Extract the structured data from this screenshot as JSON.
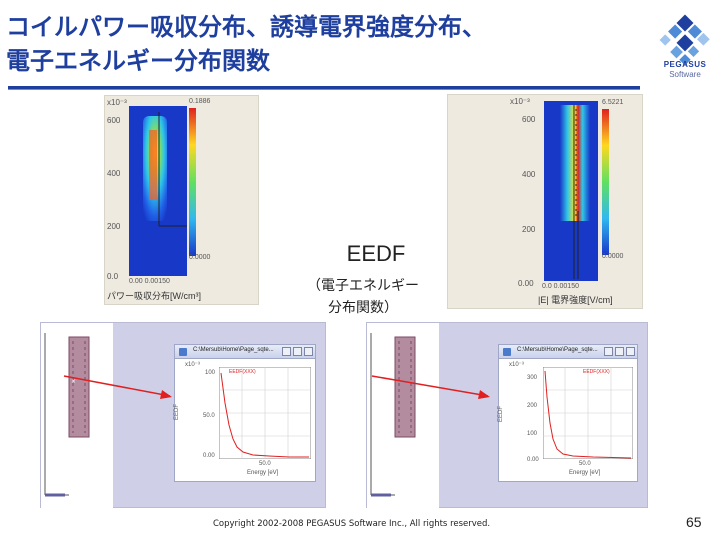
{
  "slide": {
    "title_line1": "コイルパワー吸収分布、誘導電界強度分布、",
    "title_line2": "電子エネルギー分布関数",
    "page_number": "65",
    "copyright": "Copyright 2002-2008 PEGASUS Software Inc., All rights reserved."
  },
  "logo": {
    "name": "PEGASUS",
    "sub": "Software"
  },
  "eedf": {
    "label": "EEDF",
    "sub_line1": "（電子エネルギー",
    "sub_line2": "分布関数）"
  },
  "power_map": {
    "scale": "x10⁻³",
    "y_ticks": [
      "600",
      "400",
      "200",
      "0.0"
    ],
    "x_ticks": "0.00 0.00150",
    "colorbar_max": "0.1886",
    "colorbar_min": "0.0000",
    "label": "パワー吸収分布[W/cm³]"
  },
  "efield_map": {
    "scale": "x10⁻³",
    "y_ticks": [
      "600",
      "400",
      "200",
      "0.00"
    ],
    "x_ticks": "0.0 0.00150",
    "colorbar_max": "6.5221",
    "colorbar_min": "0.0000",
    "label": "|E| 電界強度[V/cm]"
  },
  "left_window": {
    "title": "C:\\Mersub\\Home\\Page_sqte...",
    "scale": "x10⁻³",
    "y_ticks": [
      "100",
      "50.0",
      "0.00"
    ],
    "ylabel": "EEDF",
    "x_tick": "50.0",
    "xlabel": "Energy [eV]",
    "legend": "EEDF(XXX)"
  },
  "right_window": {
    "title": "C:\\Mersub\\Home\\Page_sqte...",
    "scale": "x10⁻³",
    "y_ticks": [
      "300",
      "200",
      "100",
      "0.00"
    ],
    "ylabel": "EEDF",
    "x_tick": "50.0",
    "xlabel": "Energy [eV]",
    "legend": "EEDF(XXX)"
  },
  "colors": {
    "title": "#1f3f9f",
    "arrow": "#e02020",
    "curve": "#e02020"
  }
}
